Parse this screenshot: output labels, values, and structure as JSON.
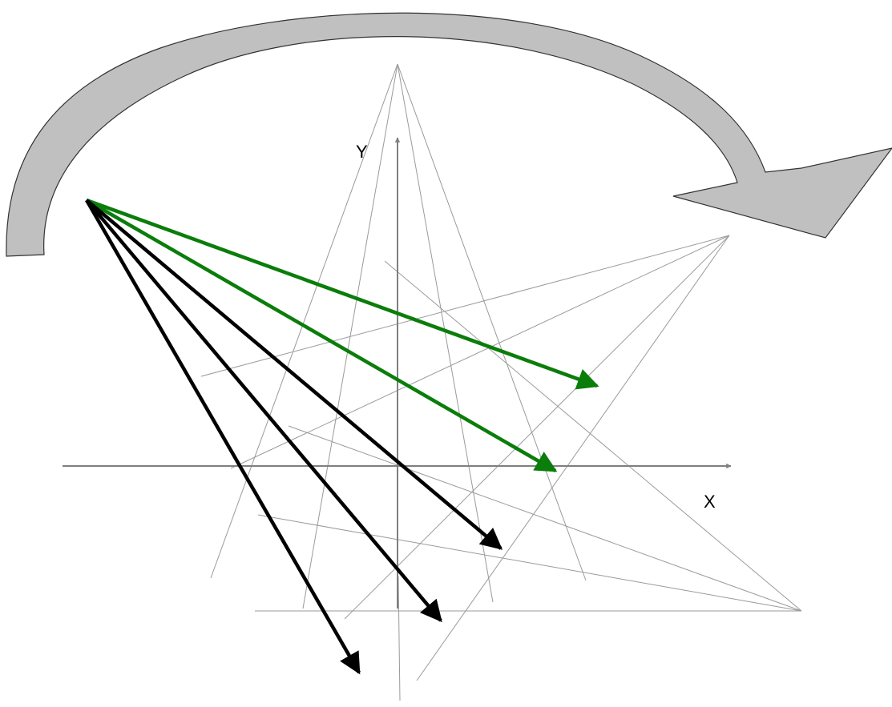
{
  "axes": {
    "x_label": "X",
    "y_label": "Y"
  },
  "colors": {
    "background": "#ffffff",
    "construction_line": "#9a9a9a",
    "axis": "#7f7f7f",
    "rotation_arrow_fill": "#c0c0c0",
    "rotation_arrow_stroke": "#333333",
    "green_vector": "#0a7d0a",
    "black_vector": "#000000",
    "label_text": "#000000"
  }
}
